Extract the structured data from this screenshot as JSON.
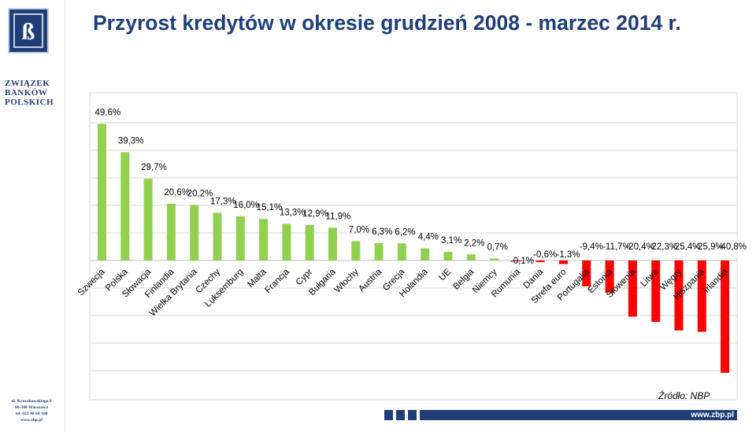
{
  "header": {
    "title": "Przyrost kredytów w okresie grudzień 2008 - marzec 2014 r."
  },
  "logo": {
    "monogram": "ZBP",
    "name_lines": [
      "ZWIĄZEK",
      "BANKÓW",
      "POLSKICH"
    ],
    "address_lines": [
      "ul. Kruczkowskiego 8",
      "00-380 Warszawa",
      "tel. 022 48 68 180",
      "www.zbp.pl"
    ]
  },
  "footer": {
    "url": "www.zbp.pl",
    "source": "Źródło: NBP"
  },
  "colors": {
    "brand": "#1f3e78",
    "positive_bar": "#92d050",
    "negative_bar": "#ff0000",
    "gridline": "#d9d9d9"
  },
  "chart_data": {
    "type": "bar",
    "title": "",
    "xlabel": "",
    "ylabel": "",
    "ylim": [
      -40.8,
      49.6
    ],
    "grid": true,
    "categories": [
      "Szwecja",
      "Polska",
      "Słowacja",
      "Finlandia",
      "Wielka Brytania",
      "Czechy",
      "Luksemburg",
      "Malta",
      "Francja",
      "Cypr",
      "Bułgaria",
      "Włochy",
      "Austria",
      "Grecja",
      "Holandia",
      "UE",
      "Belgia",
      "Niemcy",
      "Rumunia",
      "Dania",
      "Strefa euro",
      "Portugalia",
      "Estonia",
      "Słowenia",
      "Litwa",
      "Węgry",
      "Hiszpania",
      "Irlandia"
    ],
    "values": [
      49.6,
      39.3,
      29.7,
      20.6,
      20.2,
      17.3,
      16.0,
      15.1,
      13.3,
      12.9,
      11.9,
      7.0,
      6.3,
      6.2,
      4.4,
      3.1,
      2.2,
      0.7,
      -0.1,
      -0.6,
      -1.3,
      -9.4,
      -11.7,
      -20.4,
      -22.3,
      -25.4,
      -25.9,
      -40.8
    ],
    "data_labels": [
      "49,6%",
      "39,3%",
      "29,7%",
      "20,6%",
      "20,2%",
      "17,3%",
      "16,0%",
      "15,1%",
      "13,3%",
      "12,9%",
      "11,9%",
      "7,0%",
      "6,3%",
      "6,2%",
      "4,4%",
      "3,1%",
      "2,2%",
      "0,7%",
      "-0,1%",
      "-0,6%",
      "-1,3%",
      "-9,4%",
      "-11,7%",
      "-20,4%",
      "-22,3%",
      "-25,4%",
      "-25,9%",
      "-40,8%"
    ]
  }
}
